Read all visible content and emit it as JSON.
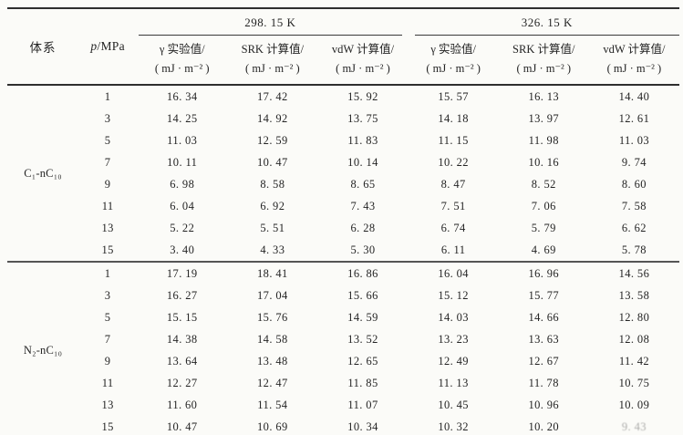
{
  "page": {
    "background": "#fbfbf8",
    "rule_color": "#2e2e2e"
  },
  "table": {
    "header": {
      "system_label": "体系",
      "pressure_italic": "p",
      "pressure_rest": "/MPa",
      "groups": [
        {
          "temp": "298. 15 K",
          "columns": [
            {
              "line1": "γ 实验值/",
              "line2": "( mJ · m⁻² )"
            },
            {
              "line1": "SRK 计算值/",
              "line2": "( mJ · m⁻² )"
            },
            {
              "line1": "vdW 计算值/",
              "line2": "( mJ · m⁻² )"
            }
          ]
        },
        {
          "temp": "326. 15 K",
          "columns": [
            {
              "line1": "γ 实验值/",
              "line2": "( mJ · m⁻² )"
            },
            {
              "line1": "SRK 计算值/",
              "line2": "( mJ · m⁻² )"
            },
            {
              "line1": "vdW 计算值/",
              "line2": "( mJ · m⁻² )"
            }
          ]
        }
      ]
    },
    "sections": [
      {
        "system": "C₁-nC₁₀",
        "rows": [
          [
            "1",
            "16. 34",
            "17. 42",
            "15. 92",
            "15. 57",
            "16. 13",
            "14. 40"
          ],
          [
            "3",
            "14. 25",
            "14. 92",
            "13. 75",
            "14. 18",
            "13. 97",
            "12. 61"
          ],
          [
            "5",
            "11. 03",
            "12. 59",
            "11. 83",
            "11. 15",
            "11. 98",
            "11. 03"
          ],
          [
            "7",
            "10. 11",
            "10. 47",
            "10. 14",
            "10. 22",
            "10. 16",
            "9. 74"
          ],
          [
            "9",
            "6. 98",
            "8. 58",
            "8. 65",
            "8. 47",
            "8. 52",
            "8. 60"
          ],
          [
            "11",
            "6. 04",
            "6. 92",
            "7. 43",
            "7. 51",
            "7. 06",
            "7. 58"
          ],
          [
            "13",
            "5. 22",
            "5. 51",
            "6. 28",
            "6. 74",
            "5. 79",
            "6. 62"
          ],
          [
            "15",
            "3. 40",
            "4. 33",
            "5. 30",
            "6. 11",
            "4. 69",
            "5. 78"
          ]
        ]
      },
      {
        "system": "N₂-nC₁₀",
        "rows": [
          [
            "1",
            "17. 19",
            "18. 41",
            "16. 86",
            "16. 04",
            "16. 96",
            "14. 56"
          ],
          [
            "3",
            "16. 27",
            "17. 04",
            "15. 66",
            "15. 12",
            "15. 77",
            "13. 58"
          ],
          [
            "5",
            "15. 15",
            "15. 76",
            "14. 59",
            "14. 03",
            "14. 66",
            "12. 80"
          ],
          [
            "7",
            "14. 38",
            "14. 58",
            "13. 52",
            "13. 23",
            "13. 63",
            "12. 08"
          ],
          [
            "9",
            "13. 64",
            "13. 48",
            "12. 65",
            "12. 49",
            "12. 67",
            "11. 42"
          ],
          [
            "11",
            "12. 27",
            "12. 47",
            "11. 85",
            "11. 13",
            "11. 78",
            "10. 75"
          ],
          [
            "13",
            "11. 60",
            "11. 54",
            "11. 07",
            "10. 45",
            "10. 96",
            "10. 09"
          ],
          [
            "15",
            "10. 47",
            "10. 69",
            "10. 34",
            "10. 32",
            "10. 20",
            {
              "v": "9. 43",
              "faded": true
            }
          ]
        ]
      }
    ]
  }
}
